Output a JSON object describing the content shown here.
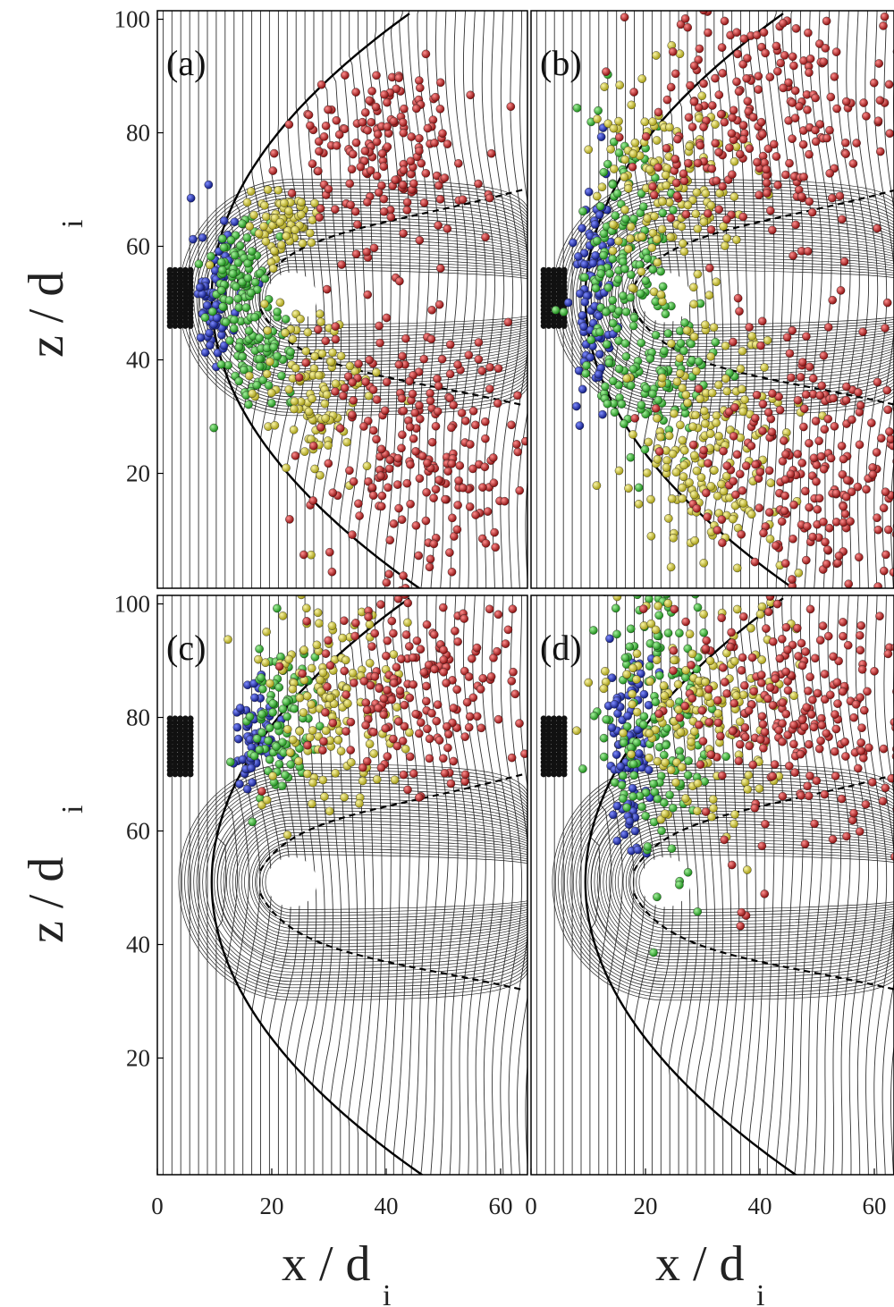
{
  "figure": {
    "y_axis_title": "z / d",
    "y_axis_sub": "i",
    "x_axis_title": "x / d",
    "x_axis_sub": "i"
  },
  "chart_data": [
    {
      "type": "scatter",
      "panel": "(a)",
      "xlim": [
        0,
        64
      ],
      "ylim": [
        0,
        100
      ],
      "xticks": [
        "0",
        "20",
        "40",
        "60"
      ],
      "yticks": [
        "20",
        "40",
        "60",
        "80",
        "100"
      ],
      "xtick_values": [
        0,
        20,
        40,
        60
      ],
      "ytick_values": [
        20,
        40,
        60,
        80,
        100
      ],
      "obstacle": {
        "cx": 23.5,
        "cy": 51,
        "r": 4.3
      },
      "source_block": {
        "x": [
          2.2,
          6
        ],
        "y": [
          46,
          56
        ]
      },
      "series": [
        {
          "color": "#1f2fa0",
          "clusters": [
            {
              "x": 10,
              "y": 51,
              "sx": 2,
              "sy": 6
            }
          ]
        },
        {
          "color": "#2fb02a",
          "clusters": [
            {
              "x": 14,
              "y": 55,
              "sx": 3,
              "sy": 5
            },
            {
              "x": 18,
              "y": 42,
              "sx": 3,
              "sy": 4
            }
          ]
        },
        {
          "color": "#cfc62a",
          "clusters": [
            {
              "x": 22,
              "y": 64,
              "sx": 3,
              "sy": 3
            },
            {
              "x": 28,
              "y": 34,
              "sx": 5,
              "sy": 7
            }
          ]
        },
        {
          "color": "#b71c1c",
          "clusters": [
            {
              "x": 40,
              "y": 76,
              "sx": 8,
              "sy": 9
            },
            {
              "x": 45,
              "y": 25,
              "sx": 9,
              "sy": 12
            }
          ]
        }
      ]
    },
    {
      "type": "scatter",
      "panel": "(b)",
      "xlim": [
        0,
        64
      ],
      "ylim": [
        0,
        100
      ],
      "xticks": [
        "0",
        "20",
        "40",
        "60"
      ],
      "yticks": [],
      "xtick_values": [
        0,
        20,
        40,
        60
      ],
      "ytick_values": [
        20,
        40,
        60,
        80,
        100
      ],
      "obstacle": {
        "cx": 23.5,
        "cy": 51,
        "r": 4.3
      },
      "source_block": {
        "x": [
          2.2,
          6
        ],
        "y": [
          46,
          56
        ]
      },
      "series": [
        {
          "color": "#1f2fa0",
          "clusters": [
            {
              "x": 11,
              "y": 52,
              "sx": 2,
              "sy": 10
            }
          ]
        },
        {
          "color": "#2fb02a",
          "clusters": [
            {
              "x": 16,
              "y": 60,
              "sx": 4,
              "sy": 10
            },
            {
              "x": 22,
              "y": 38,
              "sx": 5,
              "sy": 7
            }
          ]
        },
        {
          "color": "#cfc62a",
          "clusters": [
            {
              "x": 24,
              "y": 72,
              "sx": 6,
              "sy": 10
            },
            {
              "x": 32,
              "y": 24,
              "sx": 8,
              "sy": 10
            }
          ]
        },
        {
          "color": "#b71c1c",
          "clusters": [
            {
              "x": 42,
              "y": 83,
              "sx": 11,
              "sy": 11
            },
            {
              "x": 50,
              "y": 20,
              "sx": 10,
              "sy": 12
            }
          ]
        }
      ]
    },
    {
      "type": "scatter",
      "panel": "(c)",
      "xlim": [
        0,
        64
      ],
      "ylim": [
        0,
        100
      ],
      "xticks": [
        "0",
        "20",
        "40",
        "60"
      ],
      "yticks": [
        "20",
        "40",
        "60",
        "80",
        "100"
      ],
      "xtick_values": [
        0,
        20,
        40,
        60
      ],
      "ytick_values": [
        20,
        40,
        60,
        80,
        100
      ],
      "obstacle": {
        "cx": 23.5,
        "cy": 51,
        "r": 4.3
      },
      "source_block": {
        "x": [
          2.2,
          6
        ],
        "y": [
          70,
          80
        ]
      },
      "series": [
        {
          "color": "#1f2fa0",
          "clusters": [
            {
              "x": 17,
              "y": 76,
              "sx": 2,
              "sy": 4
            }
          ]
        },
        {
          "color": "#2fb02a",
          "clusters": [
            {
              "x": 21,
              "y": 80,
              "sx": 3,
              "sy": 7
            }
          ]
        },
        {
          "color": "#cfc62a",
          "clusters": [
            {
              "x": 30,
              "y": 82,
              "sx": 6,
              "sy": 10
            }
          ]
        },
        {
          "color": "#b71c1c",
          "clusters": [
            {
              "x": 45,
              "y": 84,
              "sx": 9,
              "sy": 9
            }
          ]
        }
      ]
    },
    {
      "type": "scatter",
      "panel": "(d)",
      "xlim": [
        0,
        64
      ],
      "ylim": [
        0,
        100
      ],
      "xticks": [
        "0",
        "20",
        "40",
        "60"
      ],
      "yticks": [],
      "xtick_values": [
        0,
        20,
        40,
        60
      ],
      "ytick_values": [
        20,
        40,
        60,
        80,
        100
      ],
      "obstacle": {
        "cx": 23.5,
        "cy": 51,
        "r": 4.3
      },
      "source_block": {
        "x": [
          2.2,
          6
        ],
        "y": [
          70,
          80
        ]
      },
      "series": [
        {
          "color": "#1f2fa0",
          "clusters": [
            {
              "x": 17,
              "y": 74,
              "sx": 2,
              "sy": 10
            }
          ]
        },
        {
          "color": "#2fb02a",
          "clusters": [
            {
              "x": 22,
              "y": 78,
              "sx": 5,
              "sy": 13
            }
          ]
        },
        {
          "color": "#cfc62a",
          "clusters": [
            {
              "x": 30,
              "y": 83,
              "sx": 7,
              "sy": 11
            }
          ]
        },
        {
          "color": "#b71c1c",
          "clusters": [
            {
              "x": 46,
              "y": 82,
              "sx": 11,
              "sy": 11
            }
          ]
        }
      ]
    }
  ]
}
